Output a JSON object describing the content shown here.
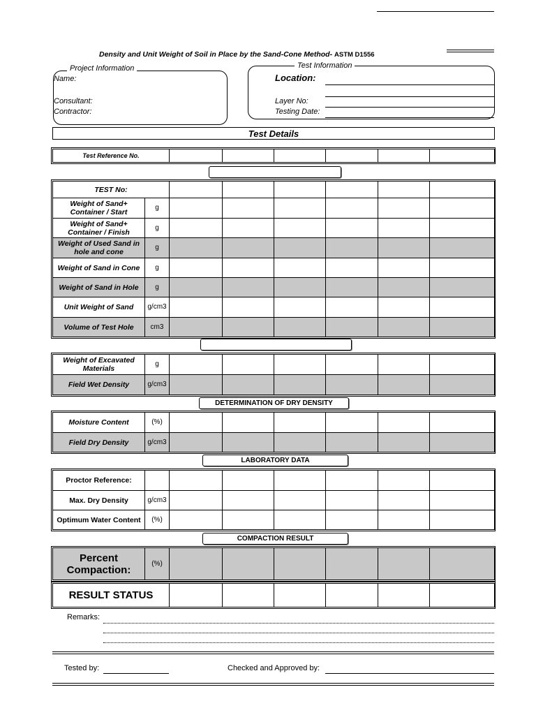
{
  "title": "Density and Unit Weight of Soil in Place by the Sand-Cone Method-",
  "standard": "ASTM D1556",
  "project": {
    "legend": "Project Information",
    "name": "Name:",
    "consultant": "Consultant:",
    "contractor": "Contractor:"
  },
  "test_info": {
    "legend": "Test Information",
    "location": "Location:",
    "layer": "Layer No:",
    "date": "Testing Date:"
  },
  "test_details": "Test Details",
  "test_reference": "Test Reference No.",
  "sections": {
    "dry_density": "DETERMINATION OF DRY DENSITY",
    "lab": "LABORATORY DATA",
    "compaction": "COMPACTION RESULT"
  },
  "rows": [
    {
      "label": "TEST No:",
      "unit": "",
      "shaded": false,
      "span": true
    },
    {
      "label": "Weight of Sand+ Container / Start",
      "unit": "g",
      "shaded": false
    },
    {
      "label": "Weight of Sand+ Container / Finish",
      "unit": "g",
      "shaded": false
    },
    {
      "label": "Weight of Used Sand in hole and cone",
      "unit": "g",
      "shaded": true
    },
    {
      "label": "Weight of Sand in Cone",
      "unit": "g",
      "shaded": false
    },
    {
      "label": "Weight of Sand in Hole",
      "unit": "g",
      "shaded": true
    },
    {
      "label": "Unit Weight of Sand",
      "unit": "g/cm3",
      "shaded": false
    },
    {
      "label": "Volume of Test Hole",
      "unit": "cm3",
      "shaded": true
    },
    {
      "label": "Weight of Excavated Materials",
      "unit": "g",
      "shaded": false
    },
    {
      "label": "Field Wet Density",
      "unit": "g/cm3",
      "shaded": true
    },
    {
      "label": "Moisture Content",
      "unit": "(%)",
      "shaded": false
    },
    {
      "label": "Field Dry Density",
      "unit": "g/cm3",
      "shaded": true
    },
    {
      "label": "Proctor Reference:",
      "unit": "",
      "shaded": false,
      "upright": true
    },
    {
      "label": "Max. Dry Density",
      "unit": "g/cm3",
      "shaded": false,
      "upright": true
    },
    {
      "label": "Optimum Water Content",
      "unit": "(%)",
      "shaded": false,
      "upright": true
    },
    {
      "label": "Percent Compaction:",
      "unit": "(%)",
      "shaded": true,
      "big": true
    },
    {
      "label": "RESULT STATUS",
      "unit": "",
      "shaded": false,
      "big": true,
      "span": true
    }
  ],
  "footer": {
    "remarks": "Remarks:",
    "tested_by": "Tested by:",
    "approved_by": "Checked and Approved by:"
  }
}
